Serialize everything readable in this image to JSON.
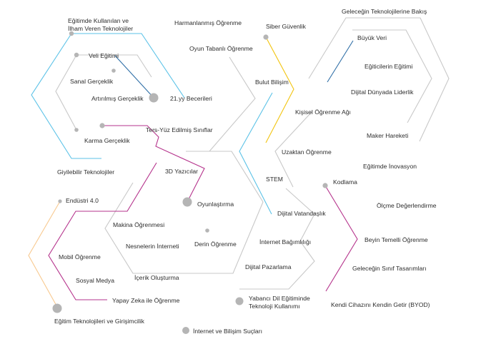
{
  "colors": {
    "blue": "#5bc2e7",
    "gray": "#c8c8c8",
    "dark_blue": "#2f6fa7",
    "yellow": "#f2c40f",
    "magenta": "#b5338c",
    "orange": "#f8c98f",
    "dot": "#b5b5b5",
    "text": "#2d2d2d"
  },
  "topics": {
    "egitimde_kullanilan": "Eğitimde Kullanılan ve\nİlham Veren Teknolojiler",
    "veli_egitimi": "Veli Eğitimi",
    "sanal_gerceklik": "Sanal Gerçeklik",
    "artirilmis_gerceklik": "Artırılmış Gerçeklik",
    "yuzyil_becerileri": "21.yy Becerileri",
    "karma_gerceklik": "Karma Gerçeklik",
    "giyilebilir": "Giyilebilir Teknolojiler",
    "harmanlanmis": "Harmanlanmış Öğrenme",
    "oyun_tabanli": "Oyun Tabanlı Öğrenme",
    "siber_guvenlik": "Siber Güvenlik",
    "bulut_bilisim": "Bulut Bilişim",
    "gelecegin_teknolojileri": "Geleceğin Teknolojilerine Bakış",
    "buyuk_veri": "Büyük Veri",
    "egiticilerin_egitimi": "Eğiticilerin Eğitimi",
    "dijital_dunyada": "Dijital Dünyada Liderlik",
    "maker_hareketi": "Maker Hareketi",
    "kisisel_ogrenme": "Kişisel Öğrenme Ağı",
    "ters_yuz": "Ters-Yüz Edilmiş Sınıflar",
    "uzaktan_ogrenme": "Uzaktan Öğrenme",
    "egitimde_inovasyon": "Eğitimde İnovasyon",
    "yazicilar_3d": "3D Yazıcılar",
    "stem": "STEM",
    "kodlama": "Kodlama",
    "oyunlastirma": "Oyunlaştırma",
    "endustri": "Endüstri 4.0",
    "dijital_vatandaslik": "Dijital Vatandaşlık",
    "olcme": "Ölçme Değerlendirme",
    "makina_ogrenmesi": "Makina Öğrenmesi",
    "nesnelerin_interneti": "Nesnelerin İnterneti",
    "derin_ogrenme": "Derin Öğrenme",
    "internet_bagimliligi": "İnternet Bağımlılığı",
    "beyin_temelli": "Beyin Temelli Öğrenme",
    "mobil_ogrenme": "Mobil Öğrenme",
    "dijital_pazarlama": "Dijital Pazarlama",
    "gelecegin_sinif": "Geleceğin Sınıf Tasarımları",
    "sosyal_medya": "Sosyal Medya",
    "icerik_olusturma": "İçerik Oluşturma",
    "yapay_zeka": "Yapay Zeka ile Öğrenme",
    "yabanci_dil": "Yabancı Dil Eğitiminde\nTeknoloji Kullanımı",
    "byod": "Kendi Cihazını Kendin Getir (BYOD)",
    "egitim_teknolojileri": "Eğitim Teknolojileri ve Girişimcilik",
    "internet_bilisim_suclari": "İnternet ve Bilişim Suçları"
  }
}
